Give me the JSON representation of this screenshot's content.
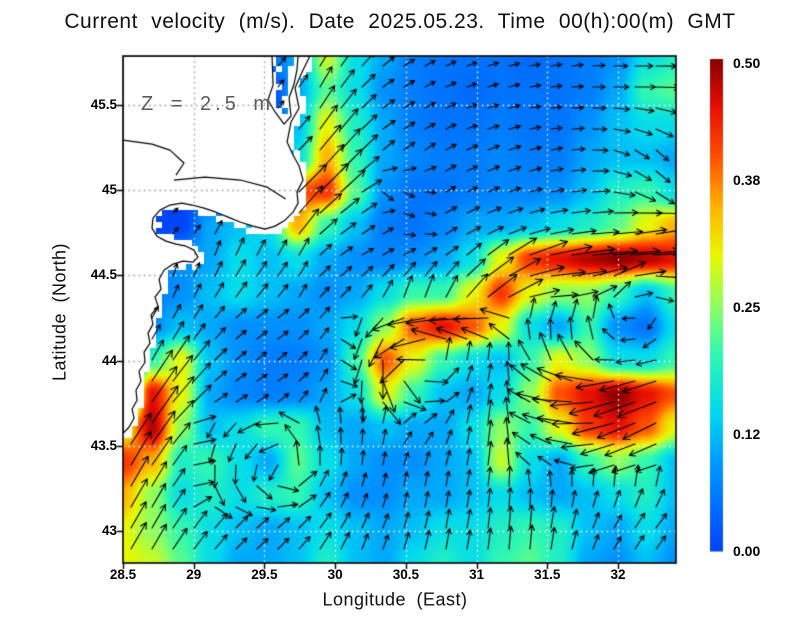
{
  "title": "Current velocity (m/s). Date 2025.05.23. Time 00(h):00(m) GMT",
  "annotation": "Z = 2.5 m",
  "axes": {
    "x_label": "Longitude (East)",
    "y_label": "Latitude (North)",
    "x_ticks": [
      {
        "v": 28.5,
        "label": "28.5"
      },
      {
        "v": 29,
        "label": "29"
      },
      {
        "v": 29.5,
        "label": "29.5"
      },
      {
        "v": 30,
        "label": "30"
      },
      {
        "v": 30.5,
        "label": "30.5"
      },
      {
        "v": 31,
        "label": "31"
      },
      {
        "v": 31.5,
        "label": "31.5"
      },
      {
        "v": 32,
        "label": "32"
      }
    ],
    "y_ticks": [
      {
        "v": 45.5,
        "label": "45.5"
      },
      {
        "v": 45,
        "label": "45"
      },
      {
        "v": 44.5,
        "label": "44.5"
      },
      {
        "v": 44,
        "label": "44"
      },
      {
        "v": 43.5,
        "label": "43.5"
      },
      {
        "v": 43,
        "label": "43"
      }
    ]
  },
  "colorbar": {
    "min": 0,
    "max": 0.5,
    "ticks": [
      {
        "v": 0.5,
        "label": "0.50"
      },
      {
        "v": 0.38,
        "label": "0.38"
      },
      {
        "v": 0.25,
        "label": "0.25"
      },
      {
        "v": 0.12,
        "label": "0.12"
      },
      {
        "v": 0.0,
        "label": "0.00"
      }
    ]
  },
  "colors": {
    "land": "#ffffff",
    "coast": "#000000",
    "frame": "#000000",
    "arrow": "#000000",
    "grid_ocean": "#f2f2f2",
    "grid_land": "#9a9a9a",
    "annotation_text": "#5a5a5a",
    "colormap_stops": [
      [
        0.0,
        "#0044f8"
      ],
      [
        0.16,
        "#0090ff"
      ],
      [
        0.28,
        "#00d8f0"
      ],
      [
        0.4,
        "#30f8b0"
      ],
      [
        0.5,
        "#90ff60"
      ],
      [
        0.6,
        "#e8f800"
      ],
      [
        0.7,
        "#ffb400"
      ],
      [
        0.8,
        "#ff5000"
      ],
      [
        0.9,
        "#e81000"
      ],
      [
        1.0,
        "#8b0000"
      ]
    ]
  },
  "chart_data": {
    "type": "heatmap",
    "subtype": "vector-field-map",
    "title": "Current velocity (m/s). Date 2025.05.23. Time 00(h):00(m) GMT",
    "xlabel": "Longitude (East)",
    "ylabel": "Latitude (North)",
    "units": "m/s",
    "depth_annotation": "Z = 2.5 m",
    "xlim": [
      28.5,
      32.41
    ],
    "ylim": [
      42.81,
      45.79
    ],
    "zlim": [
      0,
      0.5
    ],
    "grid": {
      "nx": 20,
      "ny": 16,
      "lon_start": 28.5,
      "lon_end": 32.41,
      "lat_start": 45.79,
      "lat_end": 42.81
    },
    "speed": [
      [
        0,
        0,
        0,
        0,
        0,
        0.05,
        0.1,
        0.28,
        0.15,
        0.1,
        0.06,
        0.05,
        0.05,
        0.05,
        0.04,
        0.05,
        0.06,
        0.08,
        0.15,
        0.18
      ],
      [
        0,
        0,
        0,
        0,
        0,
        0,
        0.1,
        0.22,
        0.15,
        0.08,
        0.06,
        0.05,
        0.04,
        0.05,
        0.05,
        0.05,
        0.06,
        0.1,
        0.2,
        0.22
      ],
      [
        0,
        0,
        0,
        0,
        0,
        0,
        0.12,
        0.3,
        0.18,
        0.1,
        0.06,
        0.05,
        0.05,
        0.06,
        0.05,
        0.05,
        0.08,
        0.12,
        0.15,
        0.15
      ],
      [
        0,
        0,
        0,
        0,
        0,
        0,
        0.15,
        0.35,
        0.2,
        0.1,
        0.07,
        0.06,
        0.06,
        0.07,
        0.06,
        0.06,
        0.1,
        0.12,
        0.12,
        0.1
      ],
      [
        0,
        0,
        0,
        0,
        0,
        0,
        0.4,
        0.42,
        0.22,
        0.08,
        0.05,
        0.05,
        0.06,
        0.07,
        0.07,
        0.08,
        0.12,
        0.18,
        0.2,
        0.15
      ],
      [
        0,
        0,
        0,
        0.1,
        0.12,
        0.15,
        0.35,
        0.2,
        0.12,
        0.06,
        0.05,
        0.07,
        0.1,
        0.1,
        0.12,
        0.15,
        0.18,
        0.22,
        0.3,
        0.35
      ],
      [
        0,
        0.05,
        0.08,
        0.1,
        0.15,
        0.12,
        0.15,
        0.1,
        0.08,
        0.07,
        0.08,
        0.1,
        0.15,
        0.3,
        0.42,
        0.45,
        0.48,
        0.5,
        0.48,
        0.45
      ],
      [
        0,
        0.06,
        0.08,
        0.12,
        0.15,
        0.12,
        0.1,
        0.08,
        0.1,
        0.15,
        0.2,
        0.2,
        0.3,
        0.42,
        0.3,
        0.25,
        0.25,
        0.2,
        0.12,
        0.2
      ],
      [
        0,
        0.08,
        0.12,
        0.1,
        0.08,
        0.08,
        0.08,
        0.1,
        0.15,
        0.25,
        0.4,
        0.45,
        0.4,
        0.3,
        0.15,
        0.1,
        0.2,
        0.08,
        0.05,
        0.15
      ],
      [
        0,
        0.2,
        0.3,
        0.12,
        0.08,
        0.06,
        0.06,
        0.08,
        0.2,
        0.4,
        0.3,
        0.2,
        0.15,
        0.12,
        0.2,
        0.3,
        0.25,
        0.15,
        0.15,
        0.2
      ],
      [
        0,
        0.45,
        0.3,
        0.1,
        0.07,
        0.06,
        0.07,
        0.1,
        0.15,
        0.3,
        0.2,
        0.12,
        0.1,
        0.15,
        0.25,
        0.4,
        0.45,
        0.5,
        0.45,
        0.4
      ],
      [
        0.3,
        0.48,
        0.25,
        0.12,
        0.15,
        0.2,
        0.2,
        0.12,
        0.1,
        0.12,
        0.1,
        0.1,
        0.15,
        0.25,
        0.2,
        0.3,
        0.42,
        0.45,
        0.4,
        0.3
      ],
      [
        0.42,
        0.35,
        0.18,
        0.2,
        0.15,
        0.1,
        0.22,
        0.15,
        0.1,
        0.08,
        0.08,
        0.1,
        0.12,
        0.28,
        0.15,
        0.1,
        0.2,
        0.25,
        0.2,
        0.12
      ],
      [
        0.35,
        0.25,
        0.15,
        0.18,
        0.15,
        0.18,
        0.2,
        0.12,
        0.08,
        0.08,
        0.1,
        0.1,
        0.12,
        0.15,
        0.12,
        0.1,
        0.12,
        0.15,
        0.18,
        0.12
      ],
      [
        0.3,
        0.25,
        0.2,
        0.15,
        0.12,
        0.1,
        0.12,
        0.15,
        0.12,
        0.1,
        0.12,
        0.15,
        0.15,
        0.18,
        0.2,
        0.18,
        0.12,
        0.1,
        0.15,
        0.1
      ],
      [
        0.3,
        0.28,
        0.22,
        0.15,
        0.1,
        0.1,
        0.12,
        0.18,
        0.12,
        0.1,
        0.15,
        0.18,
        0.15,
        0.2,
        0.22,
        0.18,
        0.1,
        0.08,
        0.12,
        0.08
      ]
    ],
    "direction_deg": [
      [
        45,
        45,
        45,
        45,
        45,
        45,
        50,
        60,
        50,
        40,
        30,
        25,
        20,
        15,
        10,
        10,
        5,
        0,
        0,
        0
      ],
      [
        45,
        45,
        45,
        45,
        45,
        50,
        55,
        60,
        45,
        35,
        30,
        25,
        20,
        15,
        10,
        5,
        0,
        0,
        0,
        355
      ],
      [
        45,
        45,
        45,
        45,
        45,
        50,
        50,
        55,
        45,
        35,
        30,
        25,
        20,
        15,
        10,
        5,
        0,
        350,
        340,
        330
      ],
      [
        45,
        45,
        45,
        45,
        45,
        50,
        45,
        50,
        45,
        40,
        35,
        30,
        25,
        20,
        15,
        10,
        0,
        340,
        320,
        310
      ],
      [
        45,
        45,
        45,
        45,
        45,
        50,
        45,
        45,
        40,
        320,
        340,
        30,
        25,
        20,
        15,
        10,
        5,
        350,
        330,
        320
      ],
      [
        45,
        45,
        45,
        60,
        70,
        60,
        50,
        40,
        35,
        30,
        330,
        30,
        25,
        20,
        15,
        10,
        5,
        5,
        10,
        10
      ],
      [
        45,
        80,
        75,
        70,
        65,
        60,
        60,
        40,
        30,
        30,
        30,
        35,
        40,
        35,
        20,
        10,
        5,
        5,
        5,
        0
      ],
      [
        45,
        70,
        65,
        60,
        55,
        50,
        60,
        45,
        50,
        60,
        70,
        60,
        45,
        30,
        10,
        0,
        20,
        40,
        0,
        320
      ],
      [
        45,
        60,
        60,
        50,
        40,
        35,
        40,
        50,
        250,
        230,
        200,
        195,
        190,
        185,
        86,
        82,
        85,
        120,
        210,
        270
      ],
      [
        45,
        60,
        55,
        45,
        40,
        40,
        45,
        60,
        250,
        270,
        210,
        80,
        80,
        85,
        120,
        110,
        130,
        180,
        190,
        200
      ],
      [
        45,
        55,
        50,
        40,
        35,
        30,
        40,
        60,
        270,
        300,
        340,
        30,
        70,
        85,
        150,
        170,
        185,
        195,
        200,
        200
      ],
      [
        55,
        55,
        45,
        242,
        228,
        197,
        154,
        100,
        90,
        80,
        30,
        60,
        80,
        85,
        153,
        165,
        180,
        195,
        205,
        210
      ],
      [
        60,
        55,
        55,
        268,
        266,
        250,
        99,
        90,
        85,
        80,
        70,
        75,
        80,
        85,
        140,
        150,
        190,
        200,
        200,
        200
      ],
      [
        60,
        60,
        55,
        300,
        307,
        340,
        30,
        60,
        70,
        75,
        80,
        80,
        80,
        85,
        90,
        85,
        75,
        75,
        70,
        65
      ],
      [
        60,
        60,
        55,
        50,
        45,
        40,
        45,
        55,
        65,
        70,
        75,
        80,
        80,
        85,
        85,
        80,
        70,
        60,
        55,
        50
      ],
      [
        60,
        60,
        55,
        50,
        45,
        45,
        50,
        60,
        70,
        70,
        75,
        80,
        80,
        85,
        85,
        80,
        70,
        60,
        55,
        50
      ]
    ],
    "land_polygon": [
      [
        28.5,
        45.79
      ],
      [
        29.554,
        45.79
      ],
      [
        29.561,
        45.619
      ],
      [
        29.525,
        45.531
      ],
      [
        29.575,
        45.461
      ],
      [
        29.639,
        45.39
      ],
      [
        29.688,
        45.437
      ],
      [
        29.674,
        45.543
      ],
      [
        29.709,
        45.625
      ],
      [
        29.73,
        45.708
      ],
      [
        29.738,
        45.79
      ],
      [
        29.822,
        45.79
      ],
      [
        29.773,
        45.708
      ],
      [
        29.716,
        45.602
      ],
      [
        29.745,
        45.484
      ],
      [
        29.688,
        45.402
      ],
      [
        29.66,
        45.284
      ],
      [
        29.702,
        45.208
      ],
      [
        29.745,
        45.143
      ],
      [
        29.773,
        45.061
      ],
      [
        29.73,
        44.99
      ],
      [
        29.738,
        44.925
      ],
      [
        29.702,
        44.872
      ],
      [
        29.646,
        44.825
      ],
      [
        29.575,
        44.79
      ],
      [
        29.504,
        44.772
      ],
      [
        29.419,
        44.79
      ],
      [
        29.327,
        44.814
      ],
      [
        29.243,
        44.843
      ],
      [
        29.158,
        44.872
      ],
      [
        29.073,
        44.896
      ],
      [
        28.988,
        44.914
      ],
      [
        28.917,
        44.925
      ],
      [
        28.832,
        44.914
      ],
      [
        28.762,
        44.884
      ],
      [
        28.712,
        44.837
      ],
      [
        28.705,
        44.778
      ],
      [
        28.74,
        44.731
      ],
      [
        28.804,
        44.702
      ],
      [
        28.875,
        44.684
      ],
      [
        28.946,
        44.672
      ],
      [
        29.002,
        44.649
      ],
      [
        29.03,
        44.608
      ],
      [
        28.995,
        44.578
      ],
      [
        28.924,
        44.584
      ],
      [
        28.854,
        44.567
      ],
      [
        28.79,
        44.531
      ],
      [
        28.755,
        44.478
      ],
      [
        28.769,
        44.42
      ],
      [
        28.726,
        44.373
      ],
      [
        28.748,
        44.32
      ],
      [
        28.698,
        44.267
      ],
      [
        28.712,
        44.214
      ],
      [
        28.677,
        44.161
      ],
      [
        28.691,
        44.102
      ],
      [
        28.649,
        44.049
      ],
      [
        28.656,
        43.99
      ],
      [
        28.613,
        43.937
      ],
      [
        28.627,
        43.878
      ],
      [
        28.592,
        43.825
      ],
      [
        28.599,
        43.767
      ],
      [
        28.564,
        43.714
      ],
      [
        28.578,
        43.661
      ],
      [
        28.542,
        43.608
      ],
      [
        28.5,
        43.572
      ]
    ],
    "coast_detail_lines": [
      [
        [
          28.5,
          45.296
        ],
        [
          28.705,
          45.272
        ],
        [
          28.832,
          45.237
        ],
        [
          28.931,
          45.161
        ],
        [
          28.875,
          45.09
        ]
      ],
      [
        [
          28.86,
          45.061
        ],
        [
          29.08,
          45.078
        ],
        [
          29.33,
          45.061
        ],
        [
          29.52,
          45.019
        ],
        [
          29.65,
          44.949
        ]
      ]
    ]
  }
}
